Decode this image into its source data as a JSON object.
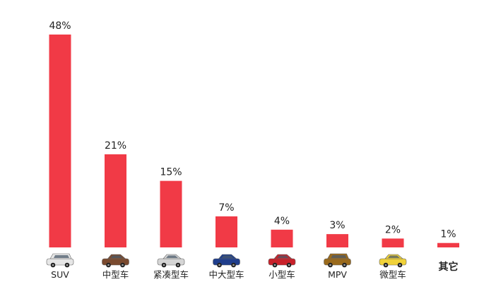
{
  "chart_data": {
    "type": "bar",
    "title": "",
    "xlabel": "",
    "ylabel": "",
    "categories": [
      "SUV",
      "中型车",
      "紧凑型车",
      "中大型车",
      "小型车",
      "MPV",
      "微型车",
      "其它"
    ],
    "values": [
      48,
      21,
      15,
      7,
      4,
      3,
      2,
      1
    ],
    "value_labels": [
      "48%",
      "21%",
      "15%",
      "7%",
      "4%",
      "3%",
      "2%",
      "1%"
    ],
    "ylim": [
      0,
      48
    ],
    "grid": false,
    "legend": "none",
    "bar_color": "#f13a46",
    "category_icons": [
      "white-suv-icon",
      "brown-sedan-icon",
      "silver-sedan-icon",
      "blue-sedan-icon",
      "red-hatchback-icon",
      "gold-minivan-icon",
      "yellow-microcar-icon",
      ""
    ],
    "icon_colors": [
      "#e6e6e6",
      "#7a4a2f",
      "#d5d5d5",
      "#1f3e8c",
      "#c8212a",
      "#9a6a1c",
      "#f0d23a",
      ""
    ]
  }
}
